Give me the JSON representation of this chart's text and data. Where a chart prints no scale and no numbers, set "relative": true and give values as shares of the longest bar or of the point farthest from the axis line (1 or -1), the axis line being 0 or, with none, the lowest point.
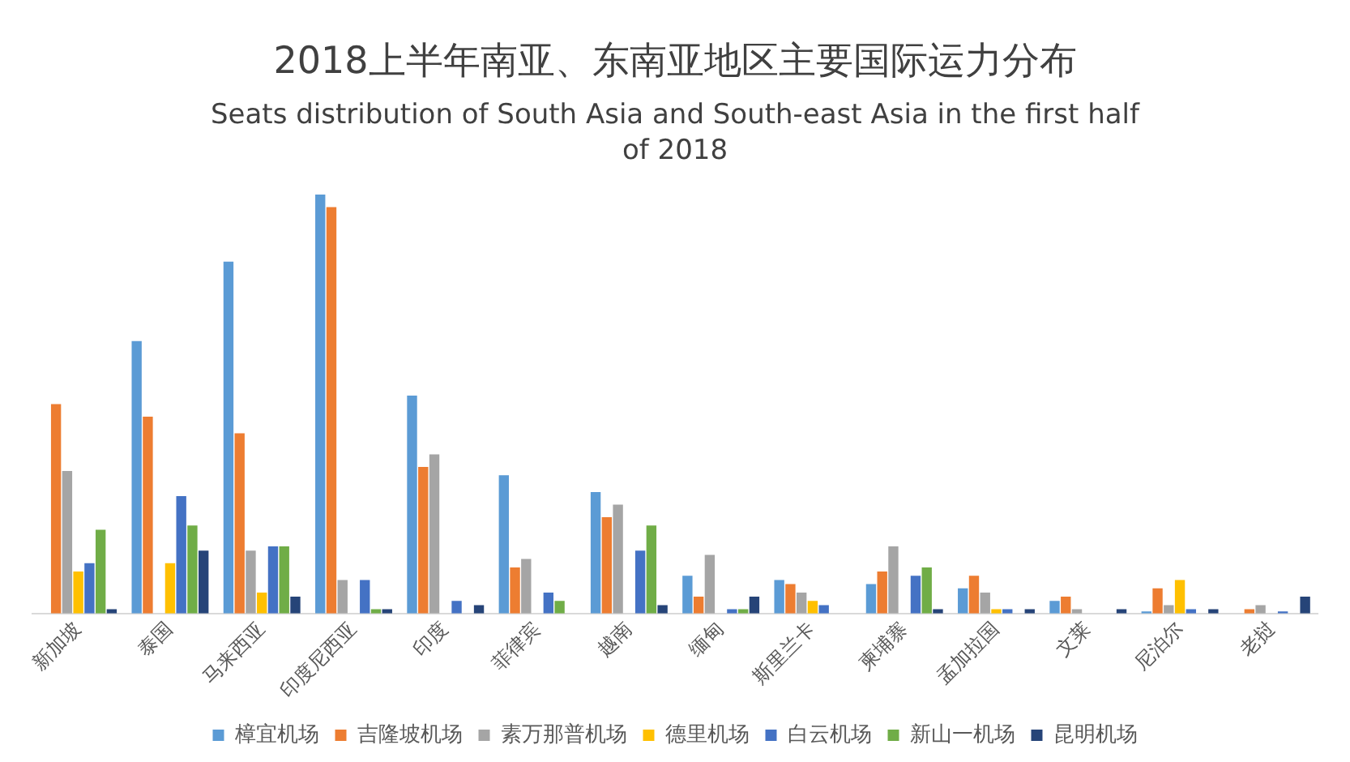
{
  "chart_data": {
    "type": "bar",
    "title": "2018上半年南亚、东南亚地区主要国际运力分布",
    "subtitle": "Seats distribution of South Asia and South-east Asia in the first half of 2018",
    "relative": true,
    "grid": false,
    "legend": "bottom",
    "categories": [
      "新加坡",
      "泰国",
      "马来西亚",
      "印度尼西亚",
      "印度",
      "菲律宾",
      "越南",
      "缅甸",
      "斯里兰卡",
      "柬埔寨",
      "孟加拉国",
      "文莱",
      "尼泊尔",
      "老挝"
    ],
    "series": [
      {
        "name": "樟宜机场",
        "color": "#5b9bd5",
        "values": [
          0,
          0.65,
          0.84,
          1,
          0.52,
          0.33,
          0.29,
          0.09,
          0.08,
          0.07,
          0.06,
          0.03,
          0.005,
          0
        ]
      },
      {
        "name": "吉隆坡机场",
        "color": "#ed7d31",
        "values": [
          0.5,
          0.47,
          0.43,
          0.97,
          0.35,
          0.11,
          0.23,
          0.04,
          0.07,
          0.1,
          0.09,
          0.04,
          0.06,
          0.01
        ]
      },
      {
        "name": "素万那普机场",
        "color": "#a5a5a5",
        "values": [
          0.34,
          0,
          0.15,
          0.08,
          0.38,
          0.13,
          0.26,
          0.14,
          0.05,
          0.16,
          0.05,
          0.01,
          0.02,
          0.02
        ]
      },
      {
        "name": "德里机场",
        "color": "#ffc000",
        "values": [
          0.1,
          0.12,
          0.05,
          0,
          0,
          0,
          0,
          0,
          0.03,
          0,
          0.01,
          0,
          0.08,
          0
        ]
      },
      {
        "name": "白云机场",
        "color": "#4472c4",
        "values": [
          0.12,
          0.28,
          0.16,
          0.08,
          0.03,
          0.05,
          0.15,
          0.01,
          0.02,
          0.09,
          0.01,
          0,
          0.01,
          0.005
        ]
      },
      {
        "name": "新山一机场",
        "color": "#70ad47",
        "values": [
          0.2,
          0.21,
          0.16,
          0.01,
          0,
          0.03,
          0.21,
          0.01,
          0,
          0.11,
          0,
          0,
          0,
          0
        ]
      },
      {
        "name": "昆明机场",
        "color": "#264478",
        "values": [
          0.01,
          0.15,
          0.04,
          0.01,
          0.02,
          0,
          0.02,
          0.04,
          0,
          0.01,
          0.01,
          0.01,
          0.01,
          0.04
        ]
      }
    ]
  }
}
